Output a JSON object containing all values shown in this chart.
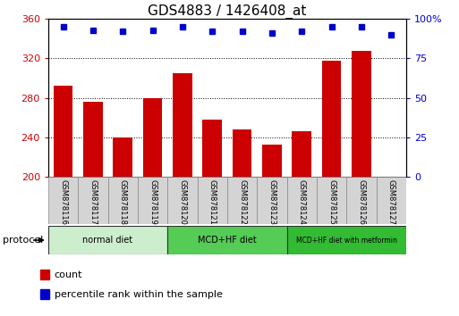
{
  "title": "GDS4883 / 1426408_at",
  "samples": [
    "GSM878116",
    "GSM878117",
    "GSM878118",
    "GSM878119",
    "GSM878120",
    "GSM878121",
    "GSM878122",
    "GSM878123",
    "GSM878124",
    "GSM878125",
    "GSM878126",
    "GSM878127"
  ],
  "counts": [
    292,
    276,
    240,
    280,
    305,
    258,
    248,
    233,
    246,
    318,
    328,
    200
  ],
  "percentile_ranks": [
    95,
    93,
    92,
    93,
    95,
    92,
    92,
    91,
    92,
    95,
    95,
    90
  ],
  "ylim_left": [
    200,
    360
  ],
  "ylim_right": [
    0,
    100
  ],
  "yticks_left": [
    200,
    240,
    280,
    320,
    360
  ],
  "yticks_right": [
    0,
    25,
    50,
    75,
    100
  ],
  "ytick_right_labels": [
    "0",
    "25",
    "50",
    "75",
    "100%"
  ],
  "bar_color": "#cc0000",
  "dot_color": "#0000cc",
  "bar_width": 0.65,
  "groups": [
    {
      "label": "normal diet",
      "start": 0,
      "end": 3,
      "color": "#cceecc"
    },
    {
      "label": "MCD+HF diet",
      "start": 4,
      "end": 7,
      "color": "#55cc55"
    },
    {
      "label": "MCD+HF diet with metformin",
      "start": 8,
      "end": 11,
      "color": "#33bb33"
    }
  ],
  "protocol_label": "protocol",
  "legend_items": [
    {
      "label": "count",
      "color": "#cc0000"
    },
    {
      "label": "percentile rank within the sample",
      "color": "#0000cc"
    }
  ],
  "grid_color": "#000000",
  "bg_color": "#ffffff",
  "tick_label_color_left": "#cc0000",
  "tick_label_color_right": "#0000cc",
  "sample_box_color": "#d4d4d4",
  "title_fontsize": 11,
  "axis_fontsize": 8,
  "legend_fontsize": 8,
  "sample_fontsize": 6
}
